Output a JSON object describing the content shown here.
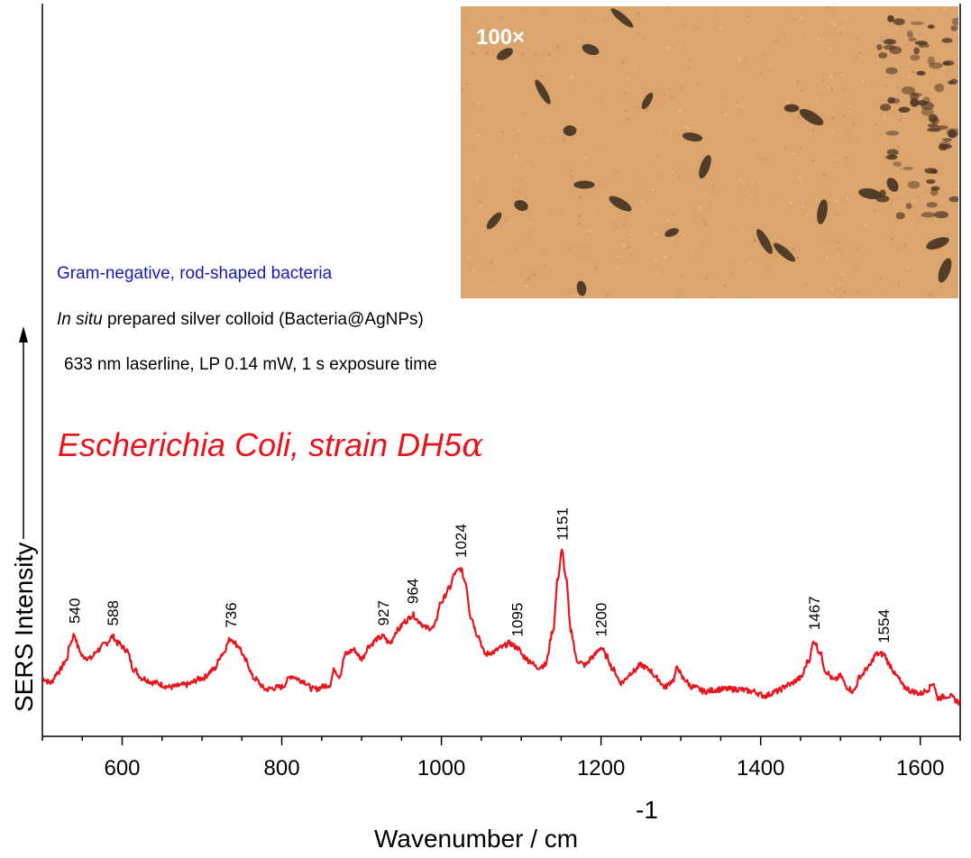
{
  "annotations": {
    "bacteria_type": "Gram-negative, rod-shaped bacteria",
    "colloid_italic": "In situ",
    "colloid_rest": " prepared silver colloid (Bacteria@AgNPs)",
    "laser": "633 nm laserline, LP 0.14 mW, 1 s exposure time",
    "species_main": "Escherichia Coli, strain DH5",
    "species_greek": "α",
    "micrograph_label": "100×"
  },
  "colors": {
    "spectrum": "#e8141c",
    "species_text": "#e8141c",
    "bacteria_text": "#1a1aaf",
    "micrograph_bg": "#dca56e",
    "axis": "#000000"
  },
  "chart_data": {
    "type": "line",
    "xlabel": "Wavenumber / cm",
    "xlabel_superscript": "-1",
    "ylabel": "SERS Intensity",
    "xlim": [
      500,
      1650
    ],
    "ylim": [
      0,
      100
    ],
    "x_ticks": [
      600,
      800,
      1000,
      1200,
      1400,
      1600
    ],
    "y_ticks_shown": false,
    "series": [
      {
        "x": [
          500,
          510,
          520,
          530,
          535,
          540,
          545,
          550,
          560,
          570,
          580,
          588,
          595,
          605,
          615,
          625,
          640,
          660,
          680,
          700,
          715,
          725,
          736,
          745,
          755,
          765,
          780,
          800,
          812,
          825,
          840,
          860,
          866,
          872,
          880,
          890,
          900,
          910,
          920,
          927,
          935,
          945,
          955,
          964,
          972,
          980,
          990,
          1000,
          1010,
          1017,
          1024,
          1030,
          1037,
          1045,
          1055,
          1065,
          1075,
          1085,
          1095,
          1103,
          1110,
          1120,
          1130,
          1140,
          1146,
          1151,
          1156,
          1162,
          1170,
          1180,
          1190,
          1200,
          1207,
          1215,
          1225,
          1240,
          1250,
          1260,
          1270,
          1280,
          1290,
          1296,
          1302,
          1315,
          1330,
          1350,
          1370,
          1390,
          1405,
          1420,
          1435,
          1450,
          1460,
          1467,
          1474,
          1482,
          1492,
          1500,
          1508,
          1516,
          1525,
          1535,
          1545,
          1554,
          1562,
          1570,
          1580,
          1590,
          1600,
          1610,
          1616,
          1622,
          1635,
          1650
        ],
        "values": [
          22,
          20,
          25,
          30,
          38,
          42,
          36,
          32,
          31,
          35,
          38,
          41,
          38,
          35,
          26,
          22,
          20,
          18,
          19,
          22,
          26,
          33,
          40,
          37,
          30,
          22,
          17,
          18,
          23,
          21,
          17,
          19,
          26,
          23,
          33,
          35,
          31,
          37,
          40,
          41,
          38,
          44,
          48,
          51,
          48,
          45,
          45,
          57,
          63,
          70,
          72,
          66,
          50,
          42,
          33,
          34,
          36,
          38,
          36,
          32,
          30,
          27,
          28,
          44,
          68,
          80,
          68,
          44,
          30,
          28,
          32,
          36,
          32,
          26,
          20,
          25,
          28,
          26,
          22,
          18,
          21,
          27,
          22,
          18,
          16,
          17,
          17,
          16,
          14,
          16,
          19,
          22,
          30,
          39,
          34,
          25,
          21,
          23,
          18,
          16,
          23,
          27,
          33,
          33,
          28,
          23,
          18,
          16,
          15,
          17,
          20,
          13,
          14,
          11
        ]
      }
    ],
    "peak_labels": [
      {
        "x": 540,
        "text": "540"
      },
      {
        "x": 588,
        "text": "588"
      },
      {
        "x": 736,
        "text": "736"
      },
      {
        "x": 927,
        "text": "927"
      },
      {
        "x": 964,
        "text": "964"
      },
      {
        "x": 1024,
        "text": "1024"
      },
      {
        "x": 1095,
        "text": "1095"
      },
      {
        "x": 1151,
        "text": "1151"
      },
      {
        "x": 1200,
        "text": "1200"
      },
      {
        "x": 1467,
        "text": "1467"
      },
      {
        "x": 1554,
        "text": "1554"
      }
    ]
  }
}
